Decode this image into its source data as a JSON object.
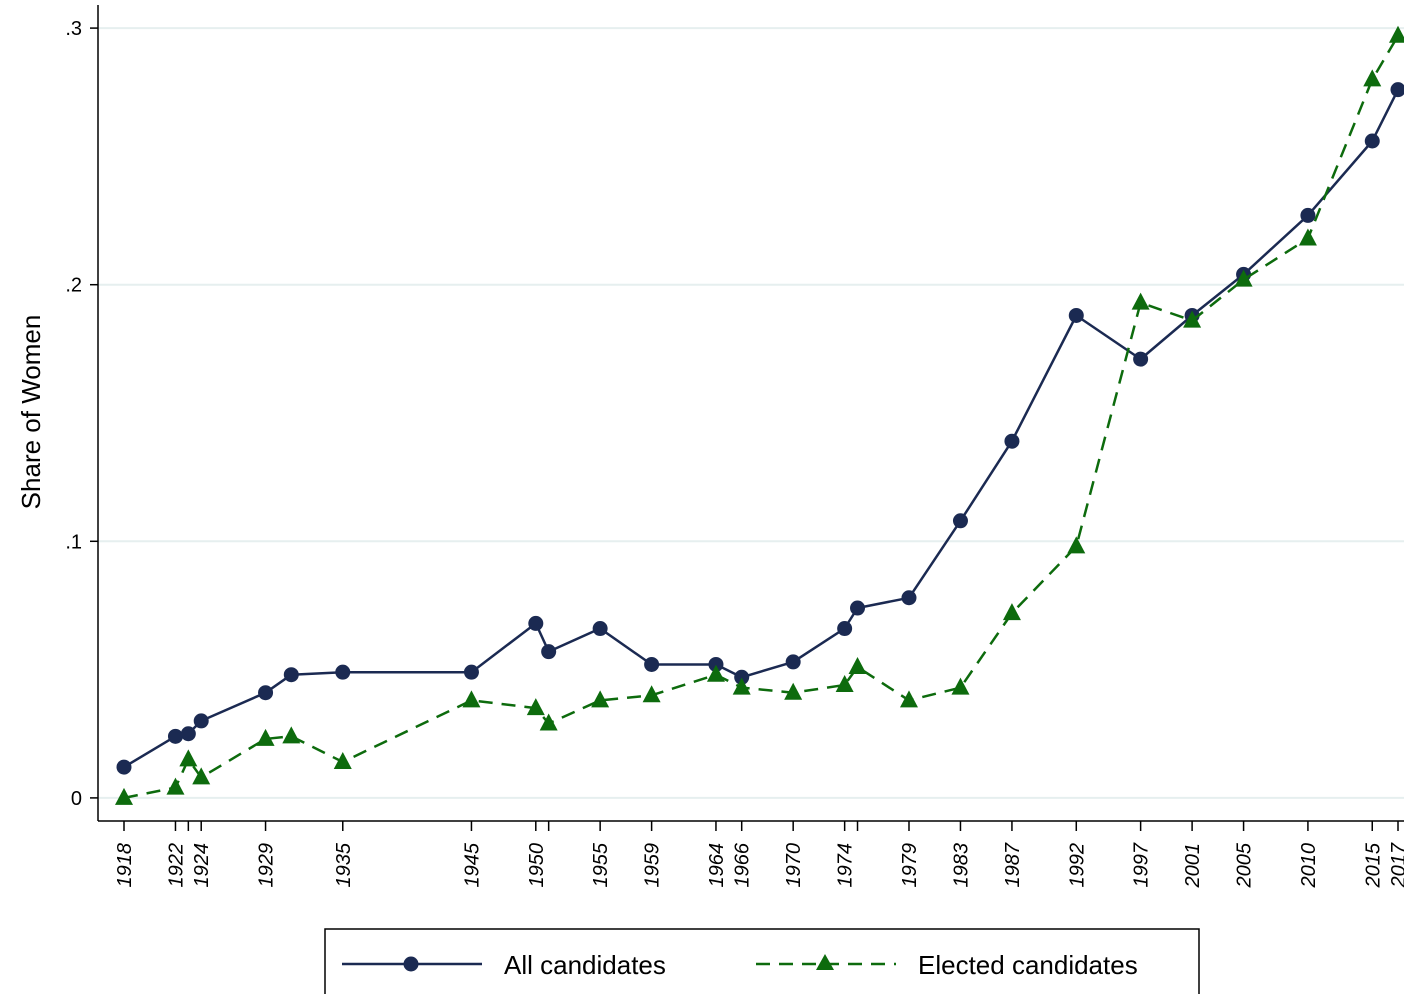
{
  "chart_data": {
    "type": "line",
    "xlabel": "",
    "ylabel": "Share of Women",
    "xlim": [
      1918,
      2017
    ],
    "ylim": [
      -0.009,
      0.309
    ],
    "yticks": [
      {
        "value": 0,
        "label": "0"
      },
      {
        "value": 0.1,
        "label": ".1"
      },
      {
        "value": 0.2,
        "label": ".2"
      },
      {
        "value": 0.3,
        "label": ".3"
      }
    ],
    "xticks": [
      {
        "value": 1918,
        "label": "1918"
      },
      {
        "value": 1922,
        "label": "1922"
      },
      {
        "value": 1923,
        "label": ""
      },
      {
        "value": 1924,
        "label": "1924"
      },
      {
        "value": 1929,
        "label": "1929"
      },
      {
        "value": 1935,
        "label": "1935"
      },
      {
        "value": 1945,
        "label": "1945"
      },
      {
        "value": 1950,
        "label": "1950"
      },
      {
        "value": 1951,
        "label": ""
      },
      {
        "value": 1955,
        "label": "1955"
      },
      {
        "value": 1959,
        "label": "1959"
      },
      {
        "value": 1964,
        "label": "1964"
      },
      {
        "value": 1966,
        "label": "1966"
      },
      {
        "value": 1970,
        "label": "1970"
      },
      {
        "value": 1974,
        "label": "1974"
      },
      {
        "value": 1975,
        "label": ""
      },
      {
        "value": 1979,
        "label": "1979"
      },
      {
        "value": 1983,
        "label": "1983"
      },
      {
        "value": 1987,
        "label": "1987"
      },
      {
        "value": 1992,
        "label": "1992"
      },
      {
        "value": 1997,
        "label": "1997"
      },
      {
        "value": 2001,
        "label": "2001"
      },
      {
        "value": 2005,
        "label": "2005"
      },
      {
        "value": 2010,
        "label": "2010"
      },
      {
        "value": 2015,
        "label": "2015"
      },
      {
        "value": 2017,
        "label": "2017"
      }
    ],
    "grid": true,
    "legend_position": "bottom",
    "series": [
      {
        "name": "All candidates",
        "color": "#1b2a52",
        "marker": "circle",
        "line_style": "solid",
        "x": [
          1918,
          1922,
          1923,
          1924,
          1929,
          1931,
          1935,
          1945,
          1950,
          1951,
          1955,
          1959,
          1964,
          1966,
          1970,
          1974,
          1975,
          1979,
          1983,
          1987,
          1992,
          1997,
          2001,
          2005,
          2010,
          2015,
          2017
        ],
        "values": [
          0.012,
          0.024,
          0.025,
          0.03,
          0.041,
          0.048,
          0.049,
          0.049,
          0.068,
          0.057,
          0.066,
          0.052,
          0.052,
          0.047,
          0.053,
          0.066,
          0.074,
          0.078,
          0.108,
          0.139,
          0.188,
          0.171,
          0.188,
          0.204,
          0.227,
          0.256,
          0.276
        ]
      },
      {
        "name": "Elected candidates",
        "color": "#0d6b0d",
        "marker": "triangle",
        "line_style": "dashed",
        "x": [
          1918,
          1922,
          1923,
          1924,
          1929,
          1931,
          1935,
          1945,
          1950,
          1951,
          1955,
          1959,
          1964,
          1966,
          1970,
          1974,
          1975,
          1979,
          1983,
          1987,
          1992,
          1997,
          2001,
          2005,
          2010,
          2015,
          2017
        ],
        "values": [
          0.0,
          0.004,
          0.015,
          0.008,
          0.023,
          0.024,
          0.014,
          0.038,
          0.035,
          0.029,
          0.038,
          0.04,
          0.048,
          0.043,
          0.041,
          0.044,
          0.051,
          0.038,
          0.043,
          0.072,
          0.098,
          0.193,
          0.186,
          0.202,
          0.218,
          0.28,
          0.297
        ]
      }
    ]
  }
}
